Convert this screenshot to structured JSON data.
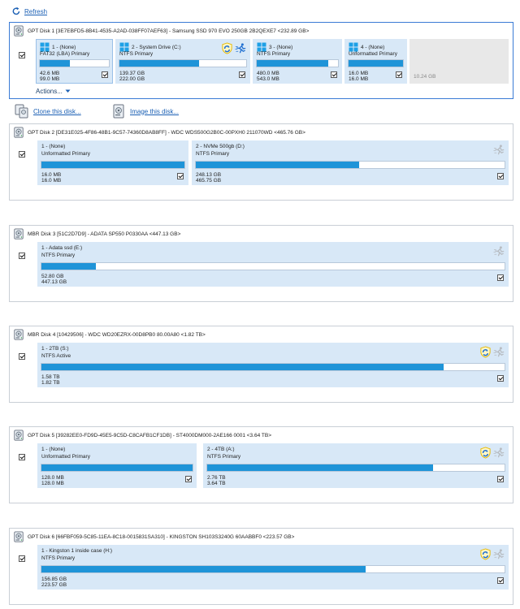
{
  "toolbar": {
    "refresh_label": "Refresh"
  },
  "disk1": {
    "title": "GPT Disk 1 [3E7EBFD5-8B41-4535-A2AD-038FF07AEF63] - Samsung SSD 970 EVO 250GB 2B2QEXE7  <232.89 GB>",
    "actions_label": "Actions...",
    "partitions": [
      {
        "name": "1 - (None)",
        "type": "FAT32 (LBA) Primary",
        "used": "42.6 MB",
        "total": "99.0 MB",
        "fill": 0.43
      },
      {
        "name": "2 - System Drive (C:)",
        "type": "NTFS Primary",
        "used": "139.37 GB",
        "total": "222.00 GB",
        "fill": 0.63
      },
      {
        "name": "3 - (None)",
        "type": "NTFS Primary",
        "used": "480.0 MB",
        "total": "543.0 MB",
        "fill": 0.88
      },
      {
        "name": "4 - (None)",
        "type": "Unformatted Primary",
        "used": "16.0 MB",
        "total": "16.0 MB",
        "fill": 1.0
      }
    ],
    "free": "10.24 GB"
  },
  "links": {
    "clone_label": "Clone this disk...",
    "image_label": "Image this disk..."
  },
  "disk2": {
    "title": "GPT Disk 2 [DE31E025-4F86-48B1-9C57-74360D8AB8FF] - WDC WDS500G2B0C-00PXH0 211070WD  <465.76 GB>",
    "partitions": [
      {
        "name": "1 - (None)",
        "type": "Unformatted Primary",
        "used": "16.0 MB",
        "total": "16.0 MB",
        "fill": 1.0
      },
      {
        "name": "2 - NVMe 500gb (D:)",
        "type": "NTFS Primary",
        "used": "248.13 GB",
        "total": "465.75 GB",
        "fill": 0.53
      }
    ]
  },
  "disk3": {
    "title": "MBR Disk 3 [51C2D7D9] - ADATA SP550 P0330AA  <447.13 GB>",
    "partitions": [
      {
        "name": "1 - Adata ssd (E:)",
        "type": "NTFS Primary",
        "used": "52.80 GB",
        "total": "447.13 GB",
        "fill": 0.118
      }
    ]
  },
  "disk4": {
    "title": "MBR Disk 4 [10429506] - WDC WD20EZRX-00D8PB0 80.00A80  <1.82 TB>",
    "partitions": [
      {
        "name": "1 - 2TB (S:)",
        "type": "NTFS Active",
        "used": "1.58 TB",
        "total": "1.82 TB",
        "fill": 0.868
      }
    ]
  },
  "disk5": {
    "title": "GPT Disk 5 [39282EE0-FD9D-45E5-9C5D-C8CAFB1CF1DB] - ST4000DM000-2AE166 0001  <3.64 TB>",
    "partitions": [
      {
        "name": "1 - (None)",
        "type": "Unformatted Primary",
        "used": "128.0 MB",
        "total": "128.0 MB",
        "fill": 1.0
      },
      {
        "name": "2 - 4TB (A:)",
        "type": "NTFS Primary",
        "used": "2.76 TB",
        "total": "3.64 TB",
        "fill": 0.76
      }
    ]
  },
  "disk6": {
    "title": "GPT Disk 6 [66FBF059-5C85-11EA-8C18-0015831SA310] - KINGSTON SH103S3240G 60AABBF0  <223.57 GB>",
    "partitions": [
      {
        "name": "1 - Kingston 1 inside case (H:)",
        "type": "NTFS Primary",
        "used": "156.85 GB",
        "total": "223.57 GB",
        "fill": 0.7
      }
    ]
  },
  "icons": {
    "refresh": "refresh-icon",
    "disk": "hard-disk-icon",
    "windows": "windows-logo-icon",
    "active": "active-partition-shield-icon",
    "running": "running-man-icon",
    "clone": "clone-disk-icon",
    "image": "image-disk-icon",
    "dropdown": "chevron-down-icon"
  }
}
